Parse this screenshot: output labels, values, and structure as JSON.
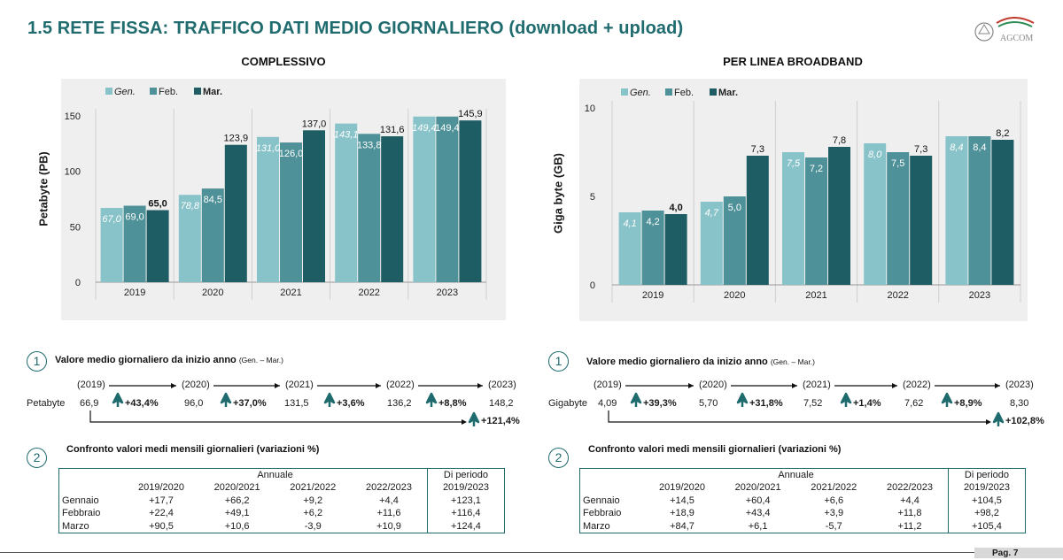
{
  "page": {
    "title": "1.5 RETE FISSA: TRAFFICO DATI MEDIO GIORNALIERO (download + upload)",
    "logo_text": "AGCOM",
    "page_label": "Pag. 7"
  },
  "colors": {
    "gen": "#88c3c9",
    "feb": "#4f9198",
    "mar": "#1d5d63",
    "accent": "#1f6b6e",
    "panel": "#efefef"
  },
  "left": {
    "section": "COMPLESSIVO",
    "growth_title": "Valore medio giornaliero da inizio anno",
    "growth_title_small": "(Gen. – Mar.)",
    "unit": "Petabyte",
    "years": [
      "(2019)",
      "(2020)",
      "(2021)",
      "(2022)",
      "(2023)"
    ],
    "values": [
      "66,9",
      "96,0",
      "131,5",
      "136,2",
      "148,2"
    ],
    "changes": [
      "+43,4%",
      "+37,0%",
      "+3,6%",
      "+8,8%"
    ],
    "total_change": "+121,4%",
    "table_title": "Confronto valori medi mensili giornalieri (variazioni %)",
    "table": {
      "group_annual": "Annuale",
      "group_period": "Di periodo",
      "cols": [
        "2019/2020",
        "2020/2021",
        "2021/2022",
        "2022/2023",
        "2019/2023"
      ],
      "rows": [
        {
          "label": "Gennaio",
          "vals": [
            "+17,7",
            "+66,2",
            "+9,2",
            "+4,4",
            "+123,1"
          ]
        },
        {
          "label": "Febbraio",
          "vals": [
            "+22,4",
            "+49,1",
            "+6,2",
            "+11,6",
            "+116,4"
          ]
        },
        {
          "label": "Marzo",
          "vals": [
            "+90,5",
            "+10,6",
            "-3,9",
            "+10,9",
            "+124,4"
          ]
        }
      ]
    }
  },
  "right": {
    "section": "PER LINEA BROADBAND",
    "growth_title": "Valore medio giornaliero da inizio anno",
    "growth_title_small": "(Gen. – Mar.)",
    "unit": "Gigabyte",
    "years": [
      "(2019)",
      "(2020)",
      "(2021)",
      "(2022)",
      "(2023)"
    ],
    "values": [
      "4,09",
      "5,70",
      "7,52",
      "7,62",
      "8,30"
    ],
    "changes": [
      "+39,3%",
      "+31,8%",
      "+1,4%",
      "+8,9%"
    ],
    "total_change": "+102,8%",
    "table_title": "Confronto valori medi mensili giornalieri (variazioni %)",
    "table": {
      "group_annual": "Annuale",
      "group_period": "Di periodo",
      "cols": [
        "2019/2020",
        "2020/2021",
        "2021/2022",
        "2022/2023",
        "2019/2023"
      ],
      "rows": [
        {
          "label": "Gennaio",
          "vals": [
            "+14,5",
            "+60,4",
            "+6,6",
            "+4,4",
            "+104,5"
          ]
        },
        {
          "label": "Febbraio",
          "vals": [
            "+18,9",
            "+43,4",
            "+3,9",
            "+11,8",
            "+98,2"
          ]
        },
        {
          "label": "Marzo",
          "vals": [
            "+84,7",
            "+6,1",
            "-5,7",
            "+11,2",
            "+105,4"
          ]
        }
      ]
    }
  },
  "chart_data": [
    {
      "type": "bar",
      "title": "COMPLESSIVO",
      "ylabel": "Petabyte (PB)",
      "ylim": [
        0,
        150
      ],
      "yticks": [
        "0",
        "50",
        "100",
        "150"
      ],
      "categories": [
        "2019",
        "2020",
        "2021",
        "2022",
        "2023"
      ],
      "legend": "top-left",
      "series": [
        {
          "name": "Gen.",
          "values": [
            67.0,
            78.8,
            131.0,
            143.1,
            149.4
          ],
          "labels": [
            "67,0",
            "78,8",
            "131,0",
            "143,1",
            "149,4"
          ]
        },
        {
          "name": "Feb.",
          "values": [
            69.0,
            84.5,
            126.0,
            133.8,
            149.4
          ],
          "labels": [
            "69,0",
            "84,5",
            "126,0",
            "133,8",
            "149,4"
          ]
        },
        {
          "name": "Mar.",
          "values": [
            65.0,
            123.9,
            137.0,
            131.6,
            145.9
          ],
          "labels": [
            "65,0",
            "123,9",
            "137,0",
            "131,6",
            "145,9"
          ]
        }
      ]
    },
    {
      "type": "bar",
      "title": "PER LINEA BROADBAND",
      "ylabel": "Giga byte (GB)",
      "ylim": [
        0,
        10
      ],
      "yticks": [
        "0",
        "5",
        "10"
      ],
      "categories": [
        "2019",
        "2020",
        "2021",
        "2022",
        "2023"
      ],
      "legend": "top-left",
      "series": [
        {
          "name": "Gen.",
          "values": [
            4.1,
            4.7,
            7.5,
            8.0,
            8.4
          ],
          "labels": [
            "4,1",
            "4,7",
            "7,5",
            "8,0",
            "8,4"
          ]
        },
        {
          "name": "Feb.",
          "values": [
            4.2,
            5.0,
            7.2,
            7.5,
            8.4
          ],
          "labels": [
            "4,2",
            "5,0",
            "7,2",
            "7,5",
            "8,4"
          ]
        },
        {
          "name": "Mar.",
          "values": [
            4.0,
            7.3,
            7.8,
            7.3,
            8.2
          ],
          "labels": [
            "4,0",
            "7,3",
            "7,8",
            "7,3",
            "8,2"
          ]
        }
      ]
    }
  ]
}
